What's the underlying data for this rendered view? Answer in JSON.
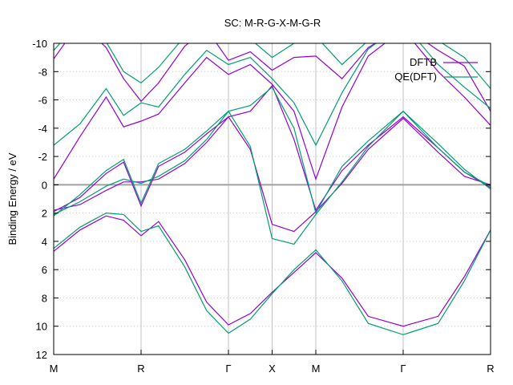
{
  "chart_data": {
    "type": "line",
    "title": "SC: M-R-G-X-M-G-R",
    "ylabel": "Binding Energy / eV",
    "xlabel": "",
    "ylim": [
      -10,
      12
    ],
    "y_ticks": [
      -10,
      -8,
      -6,
      -4,
      -2,
      0,
      2,
      4,
      6,
      8,
      10,
      12
    ],
    "y_tick_labels": [
      "-10",
      "-8",
      "-6",
      "-4",
      "-2",
      "0",
      "2",
      "4",
      "6",
      "8",
      "10",
      "12"
    ],
    "x_high_symmetry": [
      {
        "label": "M",
        "x": 0.0
      },
      {
        "label": "R",
        "x": 1.0
      },
      {
        "label": "Γ",
        "x": 2.0
      },
      {
        "label": "X",
        "x": 2.5
      },
      {
        "label": "M",
        "x": 3.0
      },
      {
        "label": "Γ",
        "x": 4.0
      },
      {
        "label": "R",
        "x": 5.0
      }
    ],
    "xlim": [
      0,
      5
    ],
    "grid": true,
    "fermi_line": 0,
    "legend_position": "top-right",
    "colors": {
      "DFTB": "#9400d3",
      "QE(DFT)": "#009e73",
      "grid": "#c0c0c0",
      "fermi": "#a0a0a0"
    },
    "series": [
      {
        "name": "DFTB",
        "bands": [
          [
            [
              0,
              4.7
            ],
            [
              0.3,
              3.2
            ],
            [
              0.6,
              2.2
            ],
            [
              0.8,
              2.5
            ],
            [
              1.0,
              3.6
            ],
            [
              1.2,
              2.6
            ],
            [
              1.5,
              5.3
            ],
            [
              1.75,
              8.3
            ],
            [
              2.0,
              9.9
            ],
            [
              2.25,
              9.1
            ],
            [
              2.5,
              7.6
            ],
            [
              2.75,
              6.2
            ],
            [
              3.0,
              4.8
            ],
            [
              3.3,
              6.6
            ],
            [
              3.6,
              9.3
            ],
            [
              4.0,
              10.0
            ],
            [
              4.4,
              9.3
            ],
            [
              4.7,
              6.5
            ],
            [
              5.0,
              3.2
            ]
          ],
          [
            [
              0,
              1.8
            ],
            [
              0.3,
              1.4
            ],
            [
              0.6,
              0.4
            ],
            [
              0.8,
              -0.2
            ],
            [
              1.0,
              -0.2
            ],
            [
              1.2,
              -0.4
            ],
            [
              1.5,
              -1.5
            ],
            [
              1.75,
              -3.0
            ],
            [
              2.0,
              -4.8
            ],
            [
              2.25,
              -2.5
            ],
            [
              2.5,
              2.8
            ],
            [
              2.75,
              3.3
            ],
            [
              3.0,
              1.9
            ],
            [
              3.3,
              -0.1
            ],
            [
              3.6,
              -2.5
            ],
            [
              4.0,
              -4.7
            ],
            [
              4.4,
              -2.3
            ],
            [
              4.7,
              -0.6
            ],
            [
              5.0,
              0.0
            ]
          ],
          [
            [
              0,
              1.9
            ],
            [
              0.3,
              0.9
            ],
            [
              0.6,
              -0.8
            ],
            [
              0.8,
              -1.6
            ],
            [
              1.0,
              1.5
            ],
            [
              1.2,
              -1.3
            ],
            [
              1.5,
              -2.3
            ],
            [
              1.75,
              -3.6
            ],
            [
              2.0,
              -4.8
            ],
            [
              2.25,
              -5.2
            ],
            [
              2.5,
              -7.0
            ],
            [
              2.75,
              -3.2
            ],
            [
              3.0,
              1.8
            ],
            [
              3.3,
              -1.0
            ],
            [
              3.6,
              -2.8
            ],
            [
              4.0,
              -4.8
            ],
            [
              4.4,
              -2.6
            ],
            [
              4.7,
              -0.9
            ],
            [
              5.0,
              0.2
            ]
          ],
          [
            [
              0,
              -0.4
            ],
            [
              0.3,
              -3.4
            ],
            [
              0.6,
              -6.2
            ],
            [
              0.8,
              -4.1
            ],
            [
              1.0,
              -4.5
            ],
            [
              1.2,
              -5.0
            ],
            [
              1.5,
              -7.2
            ],
            [
              1.75,
              -9.0
            ],
            [
              2.0,
              -7.8
            ],
            [
              2.25,
              -8.5
            ],
            [
              2.5,
              -7.1
            ],
            [
              2.75,
              -5.2
            ],
            [
              3.0,
              -0.4
            ],
            [
              3.3,
              -5.5
            ],
            [
              3.6,
              -9.1
            ],
            [
              4.0,
              -11.0
            ],
            [
              4.4,
              -8.0
            ],
            [
              4.7,
              -6.2
            ],
            [
              5.0,
              -4.2
            ]
          ],
          [
            [
              0,
              -8.9
            ],
            [
              0.3,
              -11.5
            ],
            [
              0.6,
              -9.7
            ],
            [
              0.8,
              -7.5
            ],
            [
              1.0,
              -5.9
            ],
            [
              1.2,
              -7.2
            ],
            [
              1.5,
              -9.8
            ],
            [
              1.75,
              -11.0
            ],
            [
              2.0,
              -8.8
            ],
            [
              2.25,
              -9.4
            ],
            [
              2.5,
              -8.1
            ],
            [
              2.75,
              -9.0
            ],
            [
              3.0,
              -9.1
            ],
            [
              3.3,
              -7.5
            ],
            [
              3.6,
              -9.7
            ],
            [
              4.0,
              -11.2
            ],
            [
              4.4,
              -9.5
            ],
            [
              4.7,
              -8.4
            ],
            [
              5.0,
              -5.2
            ]
          ]
        ]
      },
      {
        "name": "QE(DFT)",
        "bands": [
          [
            [
              0,
              4.5
            ],
            [
              0.3,
              3.0
            ],
            [
              0.6,
              2.0
            ],
            [
              0.8,
              2.1
            ],
            [
              1.0,
              3.3
            ],
            [
              1.2,
              2.9
            ],
            [
              1.5,
              5.8
            ],
            [
              1.75,
              8.9
            ],
            [
              2.0,
              10.5
            ],
            [
              2.25,
              9.5
            ],
            [
              2.5,
              7.7
            ],
            [
              2.75,
              6.0
            ],
            [
              3.0,
              4.6
            ],
            [
              3.3,
              6.8
            ],
            [
              3.6,
              9.8
            ],
            [
              4.0,
              10.6
            ],
            [
              4.4,
              9.8
            ],
            [
              4.7,
              6.8
            ],
            [
              5.0,
              3.2
            ]
          ],
          [
            [
              0,
              2.1
            ],
            [
              0.3,
              1.2
            ],
            [
              0.6,
              0.1
            ],
            [
              0.8,
              -0.4
            ],
            [
              1.0,
              -0.1
            ],
            [
              1.2,
              -0.6
            ],
            [
              1.5,
              -1.7
            ],
            [
              1.75,
              -3.2
            ],
            [
              2.0,
              -5.2
            ],
            [
              2.25,
              -2.7
            ],
            [
              2.5,
              3.8
            ],
            [
              2.75,
              4.2
            ],
            [
              3.0,
              2.1
            ],
            [
              3.3,
              -0.2
            ],
            [
              3.6,
              -2.7
            ],
            [
              4.0,
              -5.2
            ],
            [
              4.4,
              -2.6
            ],
            [
              4.7,
              -0.9
            ],
            [
              5.0,
              0.1
            ]
          ],
          [
            [
              0,
              2.2
            ],
            [
              0.3,
              0.7
            ],
            [
              0.6,
              -1.0
            ],
            [
              0.8,
              -1.8
            ],
            [
              1.0,
              1.3
            ],
            [
              1.2,
              -1.5
            ],
            [
              1.5,
              -2.5
            ],
            [
              1.75,
              -3.8
            ],
            [
              2.0,
              -5.2
            ],
            [
              2.25,
              -5.6
            ],
            [
              2.5,
              -6.9
            ],
            [
              2.75,
              -4.0
            ],
            [
              3.0,
              2.0
            ],
            [
              3.3,
              -1.3
            ],
            [
              3.6,
              -3.1
            ],
            [
              4.0,
              -5.2
            ],
            [
              4.4,
              -2.9
            ],
            [
              4.7,
              -1.1
            ],
            [
              5.0,
              0.3
            ]
          ],
          [
            [
              0,
              -2.8
            ],
            [
              0.3,
              -4.3
            ],
            [
              0.6,
              -6.8
            ],
            [
              0.8,
              -4.9
            ],
            [
              1.0,
              -5.8
            ],
            [
              1.2,
              -5.5
            ],
            [
              1.5,
              -7.8
            ],
            [
              1.75,
              -9.5
            ],
            [
              2.0,
              -8.5
            ],
            [
              2.25,
              -9.0
            ],
            [
              2.5,
              -7.5
            ],
            [
              2.75,
              -5.8
            ],
            [
              3.0,
              -2.8
            ],
            [
              3.3,
              -6.5
            ],
            [
              3.6,
              -9.6
            ],
            [
              4.0,
              -11.4
            ],
            [
              4.4,
              -8.5
            ],
            [
              4.7,
              -6.9
            ],
            [
              5.0,
              -5.4
            ]
          ],
          [
            [
              0,
              -9.5
            ],
            [
              0.3,
              -11.6
            ],
            [
              0.6,
              -10.1
            ],
            [
              0.8,
              -8.0
            ],
            [
              1.0,
              -7.2
            ],
            [
              1.2,
              -8.3
            ],
            [
              1.5,
              -10.5
            ],
            [
              1.75,
              -11.4
            ],
            [
              2.0,
              -10.0
            ],
            [
              2.25,
              -10.3
            ],
            [
              2.5,
              -9.0
            ],
            [
              2.75,
              -10.0
            ],
            [
              3.0,
              -10.5
            ],
            [
              3.3,
              -8.5
            ],
            [
              3.6,
              -10.2
            ],
            [
              4.0,
              -11.6
            ],
            [
              4.4,
              -10.2
            ],
            [
              4.7,
              -9.0
            ],
            [
              5.0,
              -6.8
            ]
          ]
        ]
      }
    ]
  }
}
